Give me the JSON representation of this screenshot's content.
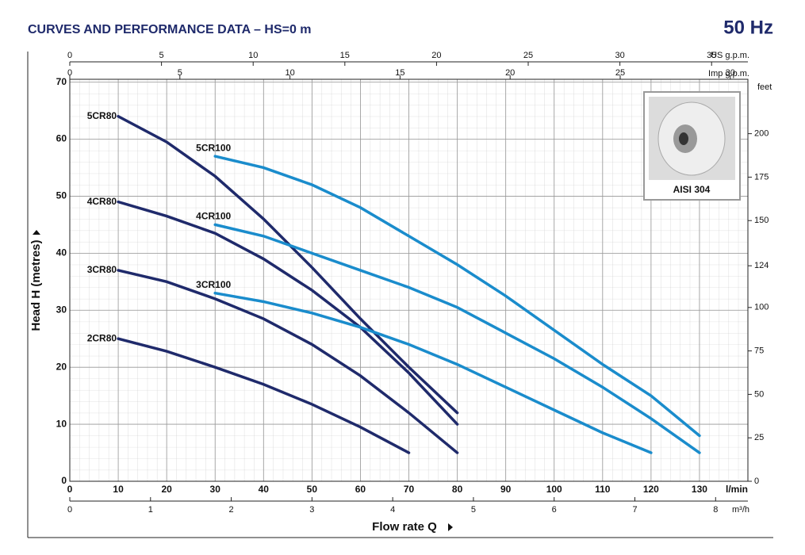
{
  "title": "CURVES AND PERFORMANCE DATA  –  HS=0 m",
  "frequency": "50 Hz",
  "chart_data": {
    "type": "line",
    "x_unit": "l/min",
    "x_title": "Flow rate Q",
    "y_title": "Head H (metres)",
    "xlim": [
      0,
      140
    ],
    "xticks": [
      0,
      10,
      20,
      30,
      40,
      50,
      60,
      70,
      80,
      90,
      100,
      110,
      120,
      130
    ],
    "ylim": [
      0,
      70.5
    ],
    "yticks": [
      0,
      10,
      20,
      30,
      40,
      50,
      60,
      70
    ],
    "y2_unit": "feet",
    "y2lim": [
      0,
      231.3
    ],
    "y2ticks": [
      0,
      25,
      50,
      75,
      100,
      124,
      150,
      175,
      200
    ],
    "top_axes": [
      {
        "unit": "US g.p.m.",
        "lim": [
          0,
          36.98
        ],
        "ticks": [
          0,
          5,
          10,
          15,
          20,
          25,
          30,
          35
        ]
      },
      {
        "unit": "Imp g.p.m.",
        "lim": [
          0,
          30.8
        ],
        "ticks": [
          0,
          5,
          10,
          15,
          20,
          25,
          30
        ]
      }
    ],
    "bottom_axis2": {
      "unit": "m³/h",
      "lim": [
        0,
        8.4
      ],
      "ticks": [
        0,
        1,
        2,
        3,
        4,
        5,
        6,
        7,
        8
      ]
    },
    "grid": true,
    "inset_label": "AISI 304",
    "series": [
      {
        "name": "5CR80",
        "color": "#1f2a6b",
        "x": [
          10,
          20,
          30,
          40,
          50,
          60,
          70,
          80
        ],
        "values": [
          64,
          59.5,
          53.5,
          46,
          37.5,
          28.5,
          20,
          12
        ]
      },
      {
        "name": "4CR80",
        "color": "#1f2a6b",
        "x": [
          10,
          20,
          30,
          40,
          50,
          60,
          70,
          80
        ],
        "values": [
          49,
          46.5,
          43.5,
          39,
          33.5,
          27,
          19,
          10
        ]
      },
      {
        "name": "3CR80",
        "color": "#1f2a6b",
        "x": [
          10,
          20,
          30,
          40,
          50,
          60,
          70,
          80
        ],
        "values": [
          37,
          35,
          32,
          28.5,
          24,
          18.5,
          12,
          5
        ]
      },
      {
        "name": "2CR80",
        "color": "#1f2a6b",
        "x": [
          10,
          20,
          30,
          40,
          50,
          60,
          70
        ],
        "values": [
          25,
          22.8,
          20,
          17,
          13.5,
          9.5,
          5
        ]
      },
      {
        "name": "5CR100",
        "color": "#1a8ccc",
        "x": [
          30,
          40,
          50,
          60,
          70,
          80,
          90,
          100,
          110,
          120,
          130
        ],
        "values": [
          57,
          55,
          52,
          48,
          43,
          38,
          32.5,
          26.5,
          20.5,
          15,
          8
        ]
      },
      {
        "name": "4CR100",
        "color": "#1a8ccc",
        "x": [
          30,
          40,
          50,
          60,
          70,
          80,
          90,
          100,
          110,
          120,
          130
        ],
        "values": [
          45,
          43,
          40,
          37,
          34,
          30.5,
          26,
          21.5,
          16.5,
          11,
          5
        ]
      },
      {
        "name": "3CR100",
        "color": "#1a8ccc",
        "x": [
          30,
          40,
          50,
          60,
          70,
          80,
          90,
          100,
          110,
          120
        ],
        "values": [
          33,
          31.5,
          29.5,
          27,
          24,
          20.5,
          16.5,
          12.5,
          8.5,
          5
        ]
      }
    ]
  }
}
